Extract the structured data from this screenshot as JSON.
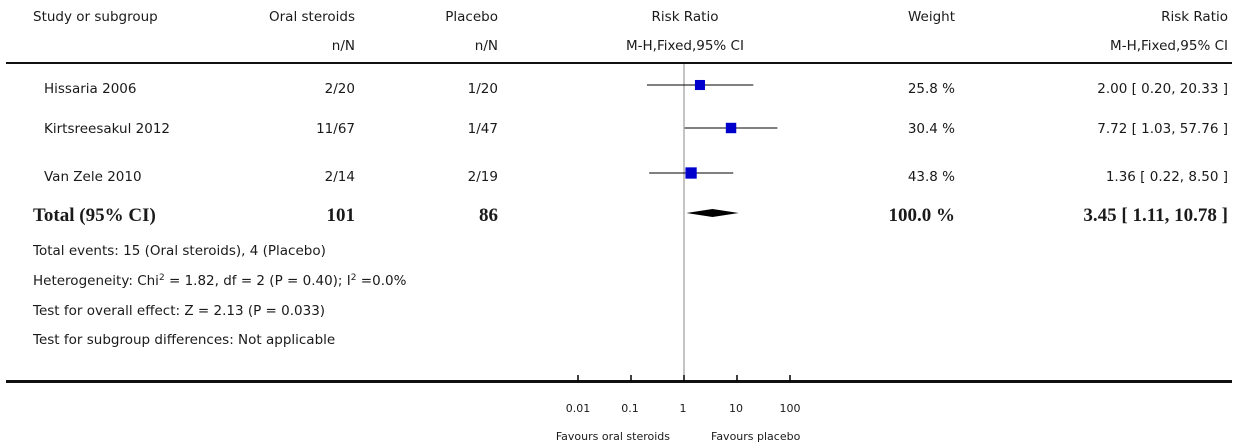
{
  "headers": {
    "study": "Study or subgroup",
    "group1": "Oral steroids",
    "group2": "Placebo",
    "plot": "Risk Ratio",
    "weight": "Weight",
    "effect": "Risk Ratio",
    "group1_sub": "n/N",
    "group2_sub": "n/N",
    "plot_sub": "M-H,Fixed,95% CI",
    "effect_sub": "M-H,Fixed,95% CI"
  },
  "studies": [
    {
      "name": "Hissaria 2006",
      "g1": "2/20",
      "g2": "1/20",
      "weight": "25.8 %",
      "ci": "2.00 [ 0.20, 20.33 ]"
    },
    {
      "name": "Kirtsreesakul 2012",
      "g1": "11/67",
      "g2": "1/47",
      "weight": "30.4 %",
      "ci": "7.72 [ 1.03, 57.76 ]"
    },
    {
      "name": "Van Zele 2010",
      "g1": "2/14",
      "g2": "2/19",
      "weight": "43.8 %",
      "ci": "1.36 [ 0.22, 8.50 ]"
    }
  ],
  "total": {
    "label": "Total (95% CI)",
    "g1": "101",
    "g2": "86",
    "weight": "100.0 %",
    "ci": "3.45 [ 1.11, 10.78 ]"
  },
  "footnotes": {
    "events": "Total events: 15 (Oral steroids), 4 (Placebo)",
    "heterogeneity_a": "Heterogeneity: Chi",
    "heterogeneity_b": " = 1.82, df = 2 (P = 0.40); I",
    "heterogeneity_c": " =0.0%",
    "sup2": "2",
    "overall": "Test for overall effect: Z = 2.13 (P = 0.033)",
    "subgroup": "Test for subgroup differences: Not applicable"
  },
  "axis": {
    "ticks": [
      "0.01",
      "0.1",
      "1",
      "10",
      "100"
    ],
    "favours_left": "Favours oral steroids",
    "favours_right": "Favours placebo"
  },
  "chart_data": {
    "type": "forest",
    "scale": "log",
    "xlim": [
      0.01,
      100
    ],
    "null_line": 1,
    "tick_values": [
      0.01,
      0.1,
      1,
      10,
      100
    ],
    "studies": [
      {
        "name": "Hissaria 2006",
        "rr": 2.0,
        "lower": 0.2,
        "upper": 20.33,
        "weight": 25.8
      },
      {
        "name": "Kirtsreesakul 2012",
        "rr": 7.72,
        "lower": 1.03,
        "upper": 57.76,
        "weight": 30.4
      },
      {
        "name": "Van Zele 2010",
        "rr": 1.36,
        "lower": 0.22,
        "upper": 8.5,
        "weight": 43.8
      }
    ],
    "pooled": {
      "rr": 3.45,
      "lower": 1.11,
      "upper": 10.78
    },
    "colors": {
      "marker": "#0000cc",
      "line": "#000000",
      "null_line": "#8a8a8a"
    }
  }
}
